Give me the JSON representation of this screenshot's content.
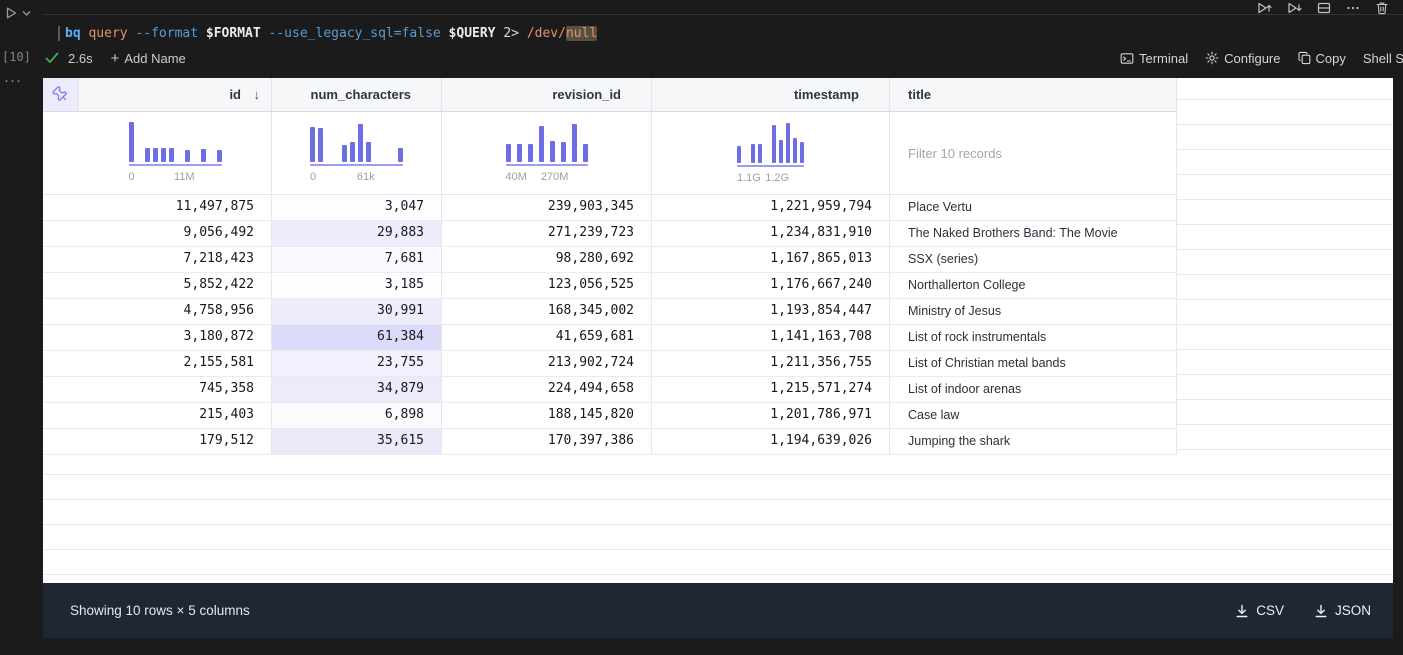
{
  "gutter": {
    "execution_count": "[10]",
    "more_label": "···"
  },
  "cell": {
    "code_tokens": [
      {
        "text": "bq",
        "color": "#61aeee",
        "bold": true
      },
      {
        "text": " query",
        "color": "#e3926d"
      },
      {
        "text": " --format",
        "color": "#569cd6"
      },
      {
        "text": " $FORMAT",
        "color": "#e8ebef",
        "bold": true
      },
      {
        "text": " --use_legacy_sql=false",
        "color": "#569cd6"
      },
      {
        "text": " $QUERY",
        "color": "#e8ebef",
        "bold": true
      },
      {
        "text": " 2>",
        "color": "#d8dde3"
      },
      {
        "text": " /dev/",
        "color": "#e3926d"
      },
      {
        "text": "null",
        "color": "#e3926d",
        "highlight": true
      }
    ],
    "run_duration": "2.6s",
    "add_name_label": "Add Name",
    "toolbar": {
      "terminal_label": "Terminal",
      "configure_label": "Configure",
      "copy_label": "Copy",
      "shell_script_label": "Shell Script"
    }
  },
  "table": {
    "filter_placeholder": "Filter 10 records",
    "columns": [
      {
        "key": "id",
        "label": "id",
        "align": "right",
        "sorted": "desc"
      },
      {
        "key": "num_characters",
        "label": "num_characters",
        "align": "right",
        "shaded": true
      },
      {
        "key": "revision_id",
        "label": "revision_id",
        "align": "right"
      },
      {
        "key": "timestamp",
        "label": "timestamp",
        "align": "right"
      },
      {
        "key": "title",
        "label": "title",
        "align": "left"
      }
    ],
    "histograms": {
      "id": {
        "bins": [
          1,
          0,
          0.36,
          0.36,
          0.36,
          0.36,
          0,
          0.3,
          0,
          0.32,
          0,
          0.3
        ],
        "min_label": "0",
        "max_label": "11M"
      },
      "num_characters": {
        "bins": [
          0.88,
          0.86,
          0,
          0,
          0.42,
          0.5,
          0.95,
          0.5,
          0,
          0,
          0,
          0.35
        ],
        "min_label": "0",
        "max_label": "61k"
      },
      "revision_id": {
        "bins": [
          0.45,
          0.45,
          0.45,
          0.9,
          0.52,
          0.5,
          0.95,
          0.45
        ],
        "min_label": "40M",
        "max_label": "270M"
      },
      "timestamp": {
        "bins": [
          0.4,
          0,
          0.45,
          0.45,
          0,
          0.9,
          0.55,
          0.95,
          0.6,
          0.5
        ],
        "min_label": "1.1G",
        "max_label": "1.2G"
      }
    },
    "rows": [
      {
        "id": "11,497,875",
        "num_characters": "3,047",
        "revision_id": "239,903,345",
        "timestamp": "1,221,959,794",
        "title": "Place Vertu"
      },
      {
        "id": "9,056,492",
        "num_characters": "29,883",
        "revision_id": "271,239,723",
        "timestamp": "1,234,831,910",
        "title": "The Naked Brothers Band: The Movie"
      },
      {
        "id": "7,218,423",
        "num_characters": "7,681",
        "revision_id": "98,280,692",
        "timestamp": "1,167,865,013",
        "title": "SSX (series)"
      },
      {
        "id": "5,852,422",
        "num_characters": "3,185",
        "revision_id": "123,056,525",
        "timestamp": "1,176,667,240",
        "title": "Northallerton College"
      },
      {
        "id": "4,758,956",
        "num_characters": "30,991",
        "revision_id": "168,345,002",
        "timestamp": "1,193,854,447",
        "title": "Ministry of Jesus"
      },
      {
        "id": "3,180,872",
        "num_characters": "61,384",
        "revision_id": "41,659,681",
        "timestamp": "1,141,163,708",
        "title": "List of rock instrumentals"
      },
      {
        "id": "2,155,581",
        "num_characters": "23,755",
        "revision_id": "213,902,724",
        "timestamp": "1,211,356,755",
        "title": "List of Christian metal bands"
      },
      {
        "id": "745,358",
        "num_characters": "34,879",
        "revision_id": "224,494,658",
        "timestamp": "1,215,571,274",
        "title": "List of indoor arenas"
      },
      {
        "id": "215,403",
        "num_characters": "6,898",
        "revision_id": "188,145,820",
        "timestamp": "1,201,786,971",
        "title": "Case law"
      },
      {
        "id": "179,512",
        "num_characters": "35,615",
        "revision_id": "170,397,386",
        "timestamp": "1,194,639,026",
        "title": "Jumping the shark"
      }
    ],
    "shading": {
      "max_value": 61384,
      "rgb": "110,110,230",
      "max_alpha": 0.25
    }
  },
  "footer": {
    "summary": "Showing 10 rows × 5 columns",
    "csv_label": "CSV",
    "json_label": "JSON"
  },
  "colors": {
    "accent_purple": "#6e6ee4",
    "footer_bg": "#1f2733",
    "header_bg": "#f6f7f9",
    "success_green": "#3fae54"
  }
}
